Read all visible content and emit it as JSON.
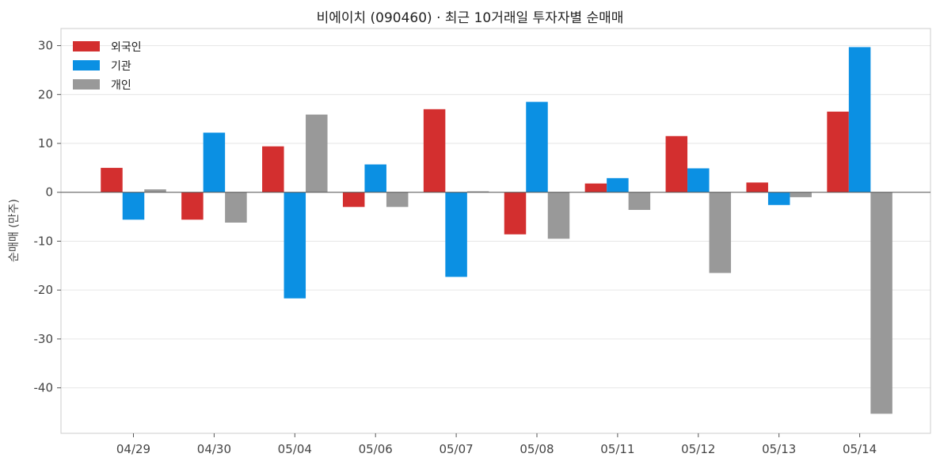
{
  "chart_data": {
    "type": "bar",
    "title": "비에이치 (090460) · 최근 10거래일 투자자별 순매매",
    "xlabel": "",
    "ylabel": "순매매 (만주)",
    "categories": [
      "04/29",
      "04/30",
      "05/04",
      "05/06",
      "05/07",
      "05/08",
      "05/11",
      "05/12",
      "05/13",
      "05/14"
    ],
    "series": [
      {
        "name": "외국인",
        "color": "#d32f2f",
        "values": [
          5.0,
          -5.6,
          9.4,
          -3.0,
          17.0,
          -8.6,
          1.8,
          11.5,
          2.0,
          16.5
        ]
      },
      {
        "name": "기관",
        "color": "#0b90e3",
        "values": [
          -5.6,
          12.2,
          -21.7,
          5.7,
          -17.3,
          18.5,
          2.9,
          4.9,
          -2.6,
          29.7
        ]
      },
      {
        "name": "개인",
        "color": "#999999",
        "values": [
          0.6,
          -6.2,
          15.9,
          -3.0,
          0.2,
          -9.5,
          -3.6,
          -16.5,
          -1.0,
          -45.3
        ]
      }
    ],
    "ylim": [
      -49.3,
      33.5
    ],
    "yticks": [
      30,
      20,
      10,
      0,
      -10,
      -20,
      -30,
      -40
    ],
    "grid": true,
    "legend_position": "top-left"
  }
}
